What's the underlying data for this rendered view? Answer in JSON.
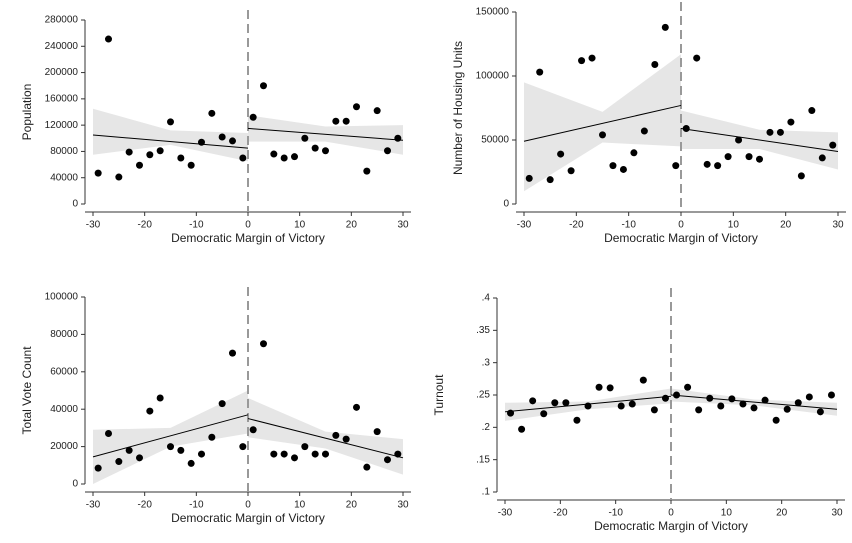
{
  "chart_data": [
    {
      "type": "scatter",
      "xlabel": "Democratic Margin of Victory",
      "ylabel": "Population",
      "x": [
        -29,
        -27,
        -25,
        -23,
        -21,
        -19,
        -17,
        -15,
        -13,
        -11,
        -9,
        -7,
        -5,
        -3,
        -1,
        1,
        3,
        5,
        7,
        9,
        11,
        13,
        15,
        17,
        19,
        21,
        23,
        25,
        27,
        29
      ],
      "values": [
        47000,
        251000,
        41000,
        79000,
        59000,
        75000,
        81000,
        125000,
        70000,
        59000,
        94000,
        138000,
        102000,
        96000,
        70000,
        132000,
        180000,
        76000,
        70000,
        72000,
        100000,
        85000,
        81000,
        126000,
        126000,
        148000,
        50000,
        142000,
        81000,
        100000
      ],
      "fit": [
        {
          "x": [
            -30,
            0
          ],
          "values": [
            105000,
            85000
          ]
        },
        {
          "x": [
            0,
            30
          ],
          "values": [
            115000,
            97000
          ]
        }
      ],
      "band": [
        {
          "x": [
            -30,
            -15,
            0
          ],
          "lower": [
            75000,
            90000,
            65000
          ],
          "upper": [
            145000,
            112000,
            108000
          ]
        },
        {
          "x": [
            0,
            15,
            30
          ],
          "lower": [
            95000,
            95000,
            75000
          ],
          "upper": [
            135000,
            118000,
            120000
          ]
        }
      ],
      "cutoff": 0,
      "xlim": [
        -30,
        30
      ],
      "ylim": [
        0,
        280000
      ],
      "xticks": [
        -30,
        -20,
        -10,
        0,
        10,
        20,
        30
      ],
      "yticks": [
        0,
        40000,
        80000,
        120000,
        160000,
        200000,
        240000,
        280000
      ],
      "color": "#000000",
      "band_color": "#e6e6e6"
    },
    {
      "type": "scatter",
      "xlabel": "Democratic Margin of Victory",
      "ylabel": "Number of Housing Units",
      "x": [
        -29,
        -27,
        -25,
        -23,
        -21,
        -19,
        -17,
        -15,
        -13,
        -11,
        -9,
        -7,
        -5,
        -3,
        -1,
        1,
        3,
        5,
        7,
        9,
        11,
        13,
        15,
        17,
        19,
        21,
        23,
        25,
        27,
        29
      ],
      "values": [
        20000,
        103000,
        19000,
        39000,
        26000,
        112000,
        114000,
        54000,
        30000,
        27000,
        40000,
        57000,
        109000,
        138000,
        30000,
        59000,
        114000,
        31000,
        30000,
        37000,
        50000,
        37000,
        35000,
        56000,
        56000,
        64000,
        22000,
        73000,
        36000,
        46000
      ],
      "fit": [
        {
          "x": [
            -30,
            0
          ],
          "values": [
            49000,
            77000
          ]
        },
        {
          "x": [
            0,
            30
          ],
          "values": [
            59000,
            41000
          ]
        }
      ],
      "band": [
        {
          "x": [
            -30,
            -15,
            0
          ],
          "lower": [
            10000,
            48000,
            45000
          ],
          "upper": [
            95000,
            72000,
            117000
          ]
        },
        {
          "x": [
            0,
            15,
            30
          ],
          "lower": [
            43000,
            43000,
            27000
          ],
          "upper": [
            73000,
            58000,
            56000
          ]
        }
      ],
      "cutoff": 0,
      "xlim": [
        -30,
        30
      ],
      "ylim": [
        0,
        150000
      ],
      "xticks": [
        -30,
        -20,
        -10,
        0,
        10,
        20,
        30
      ],
      "yticks": [
        0,
        50000,
        100000,
        150000
      ],
      "color": "#000000",
      "band_color": "#e6e6e6"
    },
    {
      "type": "scatter",
      "xlabel": "Democratic Margin of Victory",
      "ylabel": "Total Vote Count",
      "x": [
        -29,
        -27,
        -25,
        -23,
        -21,
        -19,
        -17,
        -15,
        -13,
        -11,
        -9,
        -7,
        -5,
        -3,
        -1,
        1,
        3,
        5,
        7,
        9,
        11,
        13,
        15,
        17,
        19,
        21,
        23,
        25,
        27,
        29
      ],
      "values": [
        8500,
        27000,
        12000,
        18000,
        14000,
        39000,
        46000,
        20000,
        18000,
        11000,
        16000,
        25000,
        43000,
        70000,
        20000,
        29000,
        75000,
        16000,
        16000,
        14000,
        20000,
        16000,
        16000,
        26000,
        24000,
        41000,
        9000,
        28000,
        13000,
        16000
      ],
      "fit": [
        {
          "x": [
            -30,
            0
          ],
          "values": [
            14500,
            37000
          ]
        },
        {
          "x": [
            0,
            30
          ],
          "values": [
            35000,
            14000
          ]
        }
      ],
      "band": [
        {
          "x": [
            -30,
            -15,
            0
          ],
          "lower": [
            0,
            20000,
            27000
          ],
          "upper": [
            29000,
            30000,
            50000
          ]
        },
        {
          "x": [
            0,
            15,
            30
          ],
          "lower": [
            25000,
            19000,
            5000
          ],
          "upper": [
            46000,
            28000,
            24000
          ]
        }
      ],
      "cutoff": 0,
      "xlim": [
        -30,
        30
      ],
      "ylim": [
        0,
        100000
      ],
      "xticks": [
        -30,
        -20,
        -10,
        0,
        10,
        20,
        30
      ],
      "yticks": [
        0,
        20000,
        40000,
        60000,
        80000,
        100000
      ],
      "color": "#000000",
      "band_color": "#e6e6e6"
    },
    {
      "type": "scatter",
      "xlabel": "Democratic Margin of Victory",
      "ylabel": "Turnout",
      "x": [
        -29,
        -27,
        -25,
        -23,
        -21,
        -19,
        -17,
        -15,
        -13,
        -11,
        -9,
        -7,
        -5,
        -3,
        -1,
        1,
        3,
        5,
        7,
        9,
        11,
        13,
        15,
        17,
        19,
        21,
        23,
        25,
        27,
        29
      ],
      "values": [
        0.222,
        0.197,
        0.241,
        0.221,
        0.238,
        0.238,
        0.211,
        0.233,
        0.262,
        0.261,
        0.233,
        0.236,
        0.273,
        0.227,
        0.245,
        0.25,
        0.262,
        0.227,
        0.245,
        0.233,
        0.244,
        0.236,
        0.23,
        0.242,
        0.211,
        0.228,
        0.238,
        0.247,
        0.224,
        0.25
      ],
      "fit": [
        {
          "x": [
            -30,
            0
          ],
          "values": [
            0.224,
            0.248
          ]
        },
        {
          "x": [
            0,
            30
          ],
          "values": [
            0.25,
            0.228
          ]
        }
      ],
      "band": [
        {
          "x": [
            -30,
            -15,
            0
          ],
          "lower": [
            0.21,
            0.228,
            0.237
          ],
          "upper": [
            0.238,
            0.24,
            0.26
          ]
        },
        {
          "x": [
            0,
            15,
            30
          ],
          "lower": [
            0.24,
            0.234,
            0.218
          ],
          "upper": [
            0.26,
            0.243,
            0.238
          ]
        }
      ],
      "cutoff": 0,
      "xlim": [
        -30,
        30
      ],
      "ylim": [
        0.1,
        0.4
      ],
      "xticks": [
        -30,
        -20,
        -10,
        0,
        10,
        20,
        30
      ],
      "yticks": [
        {
          "value": 0.1,
          "label": ".1"
        },
        {
          "value": 0.15,
          "label": ".15"
        },
        {
          "value": 0.2,
          "label": ".2"
        },
        {
          "value": 0.25,
          "label": ".25"
        },
        {
          "value": 0.3,
          "label": ".3"
        },
        {
          "value": 0.35,
          "label": ".35"
        },
        {
          "value": 0.4,
          "label": ".4"
        }
      ],
      "color": "#000000",
      "band_color": "#e6e6e6"
    }
  ]
}
